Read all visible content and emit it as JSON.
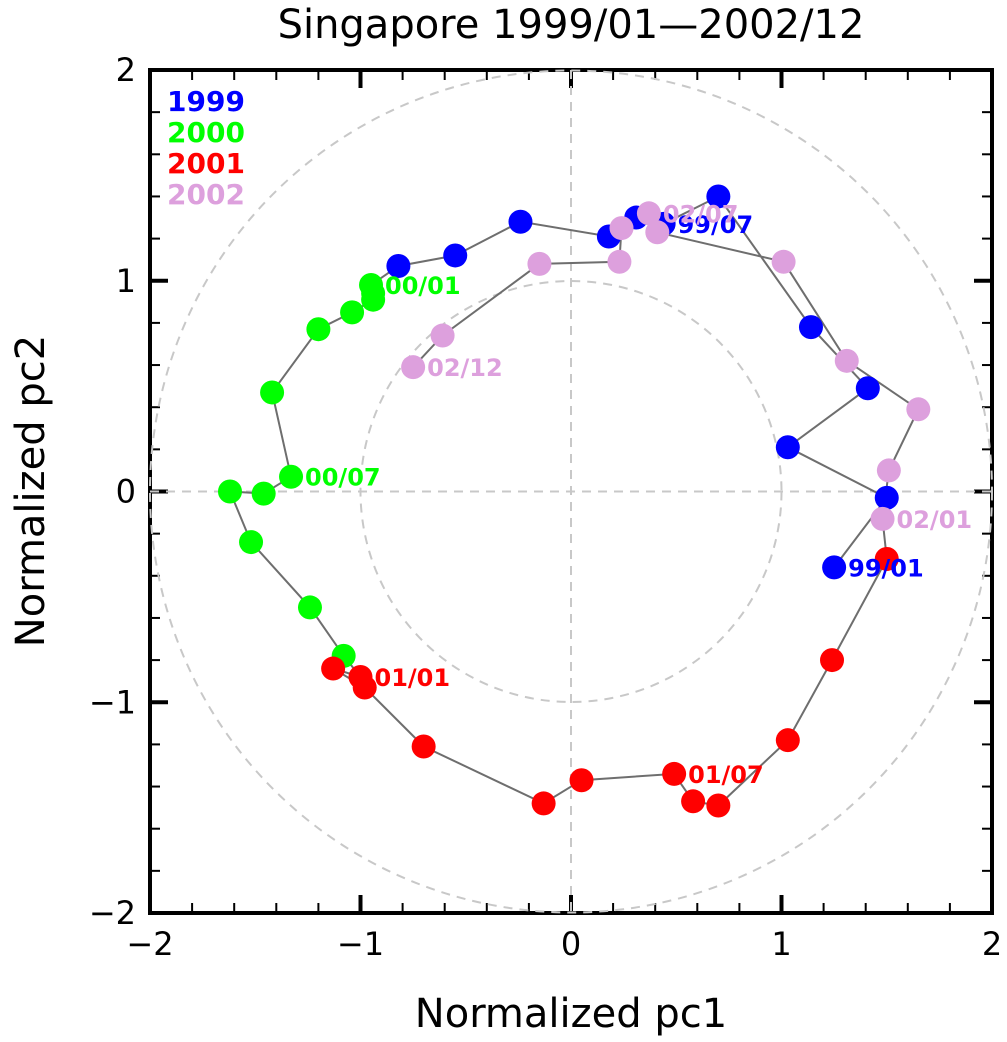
{
  "chart_data": {
    "type": "scatter",
    "title": "Singapore 1999/01—2002/12",
    "xlabel": "Normalized pc1",
    "ylabel": "Normalized pc2",
    "xlim": [
      -2,
      2
    ],
    "ylim": [
      -2,
      2
    ],
    "xticks": [
      -2,
      -1,
      0,
      1,
      2
    ],
    "yticks": [
      -2,
      -1,
      0,
      1,
      2
    ],
    "xtick_labels": [
      "−2",
      "−1",
      "0",
      "1",
      "2"
    ],
    "ytick_labels": [
      "−2",
      "−1",
      "0",
      "1",
      "2"
    ],
    "reference_circles": [
      1,
      2
    ],
    "reference_lines": "x=0, y=0 dashed",
    "connected_path": true,
    "legend_position": "top-left",
    "series": [
      {
        "name": "1999",
        "color": "#0000ff",
        "points": [
          [
            1.25,
            -0.36
          ],
          [
            1.5,
            -0.03
          ],
          [
            1.03,
            0.21
          ],
          [
            1.41,
            0.49
          ],
          [
            1.14,
            0.78
          ],
          [
            0.7,
            1.4
          ],
          [
            0.44,
            1.27
          ],
          [
            0.31,
            1.3
          ],
          [
            0.18,
            1.21
          ],
          [
            -0.24,
            1.28
          ],
          [
            -0.55,
            1.12
          ],
          [
            -0.82,
            1.07
          ]
        ],
        "annotations": [
          {
            "index": 0,
            "text": "99/01"
          },
          {
            "index": 6,
            "text": "99/07"
          }
        ]
      },
      {
        "name": "2000",
        "color": "#00ff00",
        "points": [
          [
            -0.95,
            0.98
          ],
          [
            -0.94,
            0.94
          ],
          [
            -0.94,
            0.91
          ],
          [
            -1.04,
            0.85
          ],
          [
            -1.2,
            0.77
          ],
          [
            -1.42,
            0.47
          ],
          [
            -1.33,
            0.07
          ],
          [
            -1.46,
            -0.01
          ],
          [
            -1.62,
            0.0
          ],
          [
            -1.52,
            -0.24
          ],
          [
            -1.24,
            -0.55
          ],
          [
            -1.08,
            -0.78
          ]
        ],
        "annotations": [
          {
            "index": 0,
            "text": "00/01"
          },
          {
            "index": 6,
            "text": "00/07"
          }
        ]
      },
      {
        "name": "2001",
        "color": "#ff0000",
        "points": [
          [
            -1.0,
            -0.88
          ],
          [
            -1.13,
            -0.84
          ],
          [
            -0.98,
            -0.93
          ],
          [
            -0.7,
            -1.21
          ],
          [
            -0.13,
            -1.48
          ],
          [
            0.05,
            -1.37
          ],
          [
            0.49,
            -1.34
          ],
          [
            0.58,
            -1.47
          ],
          [
            0.7,
            -1.49
          ],
          [
            1.03,
            -1.18
          ],
          [
            1.24,
            -0.8
          ],
          [
            1.5,
            -0.32
          ]
        ],
        "annotations": [
          {
            "index": 0,
            "text": "01/01"
          },
          {
            "index": 6,
            "text": "01/07"
          }
        ]
      },
      {
        "name": "2002",
        "color": "#dda0dd",
        "points": [
          [
            1.48,
            -0.13
          ],
          [
            1.51,
            0.1
          ],
          [
            1.65,
            0.39
          ],
          [
            1.31,
            0.62
          ],
          [
            1.01,
            1.09
          ],
          [
            0.41,
            1.23
          ],
          [
            0.37,
            1.32
          ],
          [
            0.24,
            1.25
          ],
          [
            0.23,
            1.09
          ],
          [
            -0.15,
            1.08
          ],
          [
            -0.61,
            0.74
          ],
          [
            -0.75,
            0.59
          ]
        ],
        "annotations": [
          {
            "index": 0,
            "text": "02/01"
          },
          {
            "index": 6,
            "text": "02/07"
          },
          {
            "index": 11,
            "text": "02/12"
          }
        ]
      }
    ]
  }
}
